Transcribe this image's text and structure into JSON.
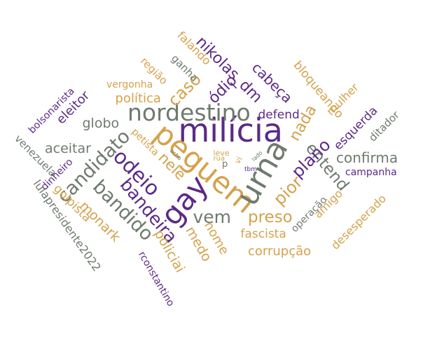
{
  "palette": {
    "purple": "#5b2a86",
    "gold": "#d4a24c",
    "gray": "#6f7a6f"
  },
  "words": [
    {
      "id": "milicia",
      "text": "milícia"
    },
    {
      "id": "peguem",
      "text": "peguem"
    },
    {
      "id": "nordestino",
      "text": "nordestino"
    },
    {
      "id": "urna",
      "text": "urna"
    },
    {
      "id": "gay",
      "text": "gay"
    },
    {
      "id": "odeio",
      "text": "odeio"
    },
    {
      "id": "candidato",
      "text": "candidato"
    },
    {
      "id": "bandido",
      "text": "bandido"
    },
    {
      "id": "bandeira",
      "text": "bandeira"
    },
    {
      "id": "vem",
      "text": "vem"
    },
    {
      "id": "preso",
      "text": "preso"
    },
    {
      "id": "pior",
      "text": "pior"
    },
    {
      "id": "entend",
      "text": "entend"
    },
    {
      "id": "plano",
      "text": "plano"
    },
    {
      "id": "nada",
      "text": "nada"
    },
    {
      "id": "nele",
      "text": "nele"
    },
    {
      "id": "caso",
      "text": "caso"
    },
    {
      "id": "odio",
      "text": "ódio"
    },
    {
      "id": "nikolas_dm",
      "text": "nikolas_dm"
    },
    {
      "id": "cabeca",
      "text": "cabeça"
    },
    {
      "id": "defend",
      "text": "defend"
    },
    {
      "id": "confirma",
      "text": "confirma"
    },
    {
      "id": "globo",
      "text": "globo"
    },
    {
      "id": "eleitor",
      "text": "eleitor"
    },
    {
      "id": "aceitar",
      "text": "aceitar"
    },
    {
      "id": "politica",
      "text": "política"
    },
    {
      "id": "monark",
      "text": "monark"
    },
    {
      "id": "policiai",
      "text": "policiai"
    },
    {
      "id": "medo",
      "text": "medo"
    },
    {
      "id": "nome",
      "text": "nome"
    },
    {
      "id": "fascista",
      "text": "fascista"
    },
    {
      "id": "corrupcao",
      "text": "corrupção"
    },
    {
      "id": "falando",
      "text": "falando"
    },
    {
      "id": "regiao",
      "text": "região"
    },
    {
      "id": "ganha",
      "text": "ganha"
    },
    {
      "id": "vergonha",
      "text": "vergonha"
    },
    {
      "id": "bloqueando",
      "text": "bloqueando"
    },
    {
      "id": "mulher",
      "text": "mulher"
    },
    {
      "id": "esquerda",
      "text": "esquerda"
    },
    {
      "id": "ditador",
      "text": "ditador"
    },
    {
      "id": "campanha",
      "text": "campanha"
    },
    {
      "id": "desesperado",
      "text": "desesperado"
    },
    {
      "id": "amigo",
      "text": "amigo"
    },
    {
      "id": "operacao",
      "text": "operação"
    },
    {
      "id": "bolsonarista",
      "text": "bolsonarista"
    },
    {
      "id": "venezuela",
      "text": "venezuela"
    },
    {
      "id": "dinheiro",
      "text": "dinheiro"
    },
    {
      "id": "golpista",
      "text": "golpista"
    },
    {
      "id": "lulapresidente2022",
      "text": "lulapresidente2022"
    },
    {
      "id": "rconstantino",
      "text": "rconstantino"
    },
    {
      "id": "petista",
      "text": "petista"
    },
    {
      "id": "leve",
      "text": "leve"
    },
    {
      "id": "rua",
      "text": "rua"
    },
    {
      "id": "vi",
      "text": "vi"
    },
    {
      "id": "p",
      "text": "p"
    },
    {
      "id": "tbm",
      "text": "tbm"
    },
    {
      "id": "acho",
      "text": "acho"
    },
    {
      "id": "lado",
      "text": "lado"
    }
  ]
}
